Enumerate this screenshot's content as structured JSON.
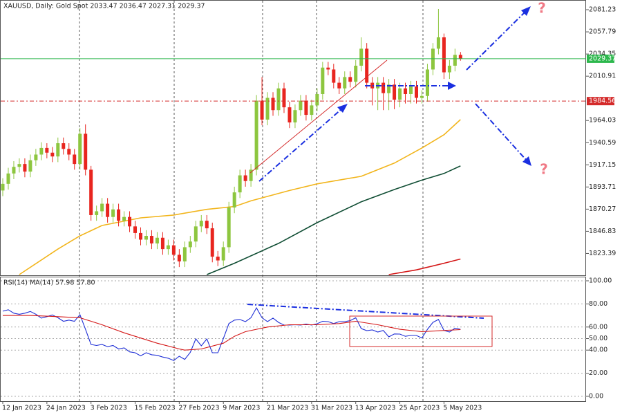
{
  "chart_data": [
    {
      "type": "candlestick",
      "title": "XAUUSD, Daily:  Gold Spot  2033.47 2036.47 2027.31 2029.37",
      "categories": [
        "12 Jan 2023",
        null,
        null,
        null,
        null,
        null,
        null,
        null,
        "24 Jan 2023",
        null,
        null,
        null,
        null,
        null,
        null,
        null,
        "3 Feb 2023",
        null,
        null,
        null,
        null,
        null,
        null,
        null,
        "15 Feb 2023",
        null,
        null,
        null,
        null,
        null,
        null,
        null,
        "27 Feb 2023",
        null,
        null,
        null,
        null,
        null,
        null,
        null,
        "9 Mar 2023",
        null,
        null,
        null,
        null,
        null,
        null,
        null,
        "21 Mar 2023",
        null,
        null,
        null,
        null,
        null,
        null,
        null,
        "31 Mar 2023",
        null,
        null,
        null,
        null,
        null,
        null,
        null,
        "13 Apr 2023",
        null,
        null,
        null,
        null,
        null,
        null,
        null,
        "25 Apr 2023",
        null,
        null,
        null,
        null,
        null,
        null,
        null,
        "5 May 2023",
        null,
        null,
        null
      ],
      "open": [
        1890,
        1897,
        1908,
        1915,
        1918,
        1910,
        1922,
        1928,
        1935,
        1930,
        1926,
        1940,
        1934,
        1928,
        1918,
        1950,
        1912,
        1864,
        1868,
        1876,
        1862,
        1870,
        1858,
        1862,
        1852,
        1845,
        1838,
        1842,
        1834,
        1840,
        1828,
        1832,
        1822,
        1815,
        1830,
        1836,
        1852,
        1858,
        1850,
        1820,
        1816,
        1830,
        1872,
        1888,
        1906,
        1900,
        1912,
        1985,
        1965,
        1988,
        1975,
        1998,
        1978,
        1962,
        1975,
        1985,
        1970,
        1980,
        1992,
        2020,
        2018,
        2004,
        1998,
        2010,
        2005,
        2022,
        2040,
        2004,
        1998,
        2004,
        1993,
        2002,
        1986,
        1998,
        1992,
        2000,
        1988,
        1990,
        2018,
        2040,
        2052,
        2015,
        2022,
        2033.47
      ],
      "high": [
        1903,
        1914,
        1921,
        1924,
        1924,
        1928,
        1934,
        1941,
        1940,
        1936,
        1946,
        1946,
        1940,
        1934,
        1956,
        1960,
        1916,
        1874,
        1882,
        1882,
        1876,
        1876,
        1868,
        1868,
        1858,
        1851,
        1848,
        1848,
        1846,
        1846,
        1838,
        1838,
        1828,
        1836,
        1842,
        1858,
        1864,
        1864,
        1856,
        1826,
        1836,
        1878,
        1894,
        1912,
        1912,
        1918,
        1991,
        2010,
        1994,
        1994,
        2004,
        2004,
        1984,
        1981,
        1991,
        1991,
        1986,
        1998,
        2026,
        2026,
        2024,
        2010,
        2016,
        2016,
        2028,
        2052,
        2046,
        2010,
        2010,
        2010,
        2008,
        2008,
        2004,
        2004,
        2006,
        2006,
        1996,
        2024,
        2046,
        2082,
        2056,
        2028,
        2040,
        2036.47
      ],
      "low": [
        1884,
        1891,
        1902,
        1909,
        1904,
        1904,
        1916,
        1922,
        1924,
        1920,
        1920,
        1928,
        1922,
        1912,
        1912,
        1906,
        1858,
        1858,
        1862,
        1856,
        1856,
        1852,
        1852,
        1846,
        1839,
        1832,
        1832,
        1828,
        1828,
        1822,
        1822,
        1816,
        1809,
        1809,
        1824,
        1830,
        1846,
        1844,
        1814,
        1810,
        1810,
        1824,
        1866,
        1882,
        1894,
        1894,
        1906,
        1959,
        1959,
        1969,
        1969,
        1972,
        1956,
        1956,
        1969,
        1964,
        1964,
        1974,
        1986,
        2012,
        1998,
        1992,
        1992,
        1999,
        1999,
        2016,
        1998,
        1980,
        1975,
        1975,
        1975,
        1976,
        1978,
        1982,
        1982,
        1982,
        1982,
        1984,
        2012,
        2034,
        2008,
        2008,
        2016,
        2027.31
      ],
      "close": [
        1897,
        1908,
        1915,
        1918,
        1910,
        1922,
        1928,
        1935,
        1930,
        1926,
        1940,
        1934,
        1928,
        1918,
        1950,
        1912,
        1864,
        1868,
        1876,
        1862,
        1870,
        1858,
        1862,
        1852,
        1845,
        1838,
        1842,
        1834,
        1840,
        1828,
        1832,
        1822,
        1815,
        1830,
        1836,
        1852,
        1858,
        1850,
        1820,
        1816,
        1830,
        1872,
        1888,
        1906,
        1900,
        1912,
        1985,
        1965,
        1988,
        1975,
        1998,
        1978,
        1962,
        1975,
        1985,
        1970,
        1980,
        1992,
        2020,
        2018,
        2004,
        1998,
        2010,
        2005,
        2022,
        2040,
        2004,
        1998,
        2004,
        1993,
        2002,
        1986,
        1998,
        1992,
        2000,
        1988,
        1990,
        2018,
        2040,
        2052,
        2015,
        2022,
        2033.47,
        2029.37
      ],
      "up_color": "#8dc63f",
      "down_color": "#e8251f",
      "ylim": [
        1800.3,
        2091.5
      ],
      "yticks": [
        2081.23,
        2057.79,
        2034.35,
        2010.91,
        1964.03,
        1940.59,
        1917.15,
        1893.71,
        1870.27,
        1846.83,
        1823.39
      ],
      "hlines": [
        {
          "value": 2029.37,
          "color": "#2db84d"
        },
        {
          "value": 1984.56,
          "color": "#d42a2a"
        }
      ],
      "overlays": [
        {
          "color": "#f2b51c",
          "x": [
            3,
            10,
            14,
            18,
            25,
            31,
            37,
            42,
            45,
            52,
            57,
            65,
            71,
            76,
            80,
            83
          ],
          "values": [
            1801,
            1828,
            1842,
            1853,
            1861,
            1864,
            1870,
            1873,
            1879,
            1890,
            1897,
            1905,
            1919,
            1935,
            1949,
            1965
          ]
        },
        {
          "color": "#0f4d33",
          "x": [
            37,
            42,
            50,
            57,
            65,
            71,
            76,
            80,
            83
          ],
          "values": [
            1801,
            1813,
            1834,
            1856,
            1878,
            1891,
            1901,
            1908,
            1916
          ]
        },
        {
          "color": "#d41616",
          "x": [
            70,
            75,
            80,
            83
          ],
          "values": [
            1801,
            1806,
            1813,
            1817.5
          ]
        }
      ],
      "annotations": [
        "?",
        "?"
      ]
    },
    {
      "type": "line",
      "title": "RSI(14) MA(14) 57.98 57.80",
      "ylim": [
        -4.2,
        103.6
      ],
      "yticks": [
        {
          "value": 100,
          "label": "100.00"
        },
        {
          "value": 80,
          "label": "80.00"
        },
        {
          "value": 60,
          "label": "60.00"
        },
        {
          "value": 50,
          "label": "50.00"
        },
        {
          "value": 40,
          "label": "40.00"
        },
        {
          "value": 20,
          "label": "20.00"
        },
        {
          "value": 0,
          "label": "0.00"
        }
      ],
      "grid": true,
      "series": [
        {
          "color": "#1f2fd6",
          "values": [
            73.7,
            75,
            72,
            71,
            72,
            73.5,
            71,
            67.7,
            69,
            70.5,
            68,
            65,
            66,
            65,
            70.7,
            58,
            44.9,
            44,
            44.9,
            43,
            44,
            41,
            42,
            38.5,
            37.7,
            35,
            37.7,
            36,
            35.5,
            34,
            33,
            31,
            34.7,
            32,
            38,
            49.7,
            43.7,
            49.7,
            37.7,
            37.7,
            50,
            63,
            66,
            66.5,
            64.7,
            68,
            76.6,
            68,
            64.7,
            67.7,
            64,
            61.7,
            61.7,
            62,
            61.7,
            62.5,
            61.7,
            62.9,
            65,
            64.7,
            63,
            64.7,
            64.7,
            65.5,
            68,
            58.7,
            56.9,
            57.5,
            55.7,
            57,
            51.5,
            54,
            53.9,
            52,
            52.7,
            52.7,
            50.5,
            58,
            64,
            66.5,
            57,
            55.7,
            59,
            57.98
          ]
        },
        {
          "color": "#d41616",
          "x": [
            0,
            5,
            10,
            14,
            18,
            22,
            24,
            28,
            32,
            33,
            36,
            40,
            42,
            44,
            48,
            52,
            57,
            61,
            64,
            68,
            72,
            76,
            80,
            83
          ],
          "values": [
            70,
            70,
            69,
            68,
            62,
            55,
            52,
            46,
            41,
            40,
            41,
            46,
            52,
            56,
            60,
            62,
            62,
            63,
            65,
            62,
            58,
            56,
            57,
            57.8
          ]
        }
      ]
    }
  ]
}
